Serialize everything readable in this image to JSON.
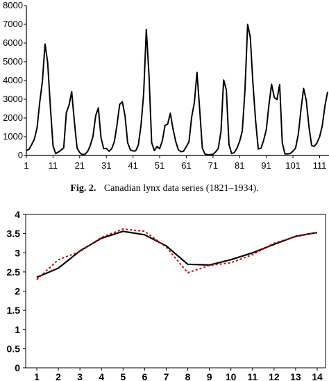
{
  "chart_data": [
    {
      "type": "line",
      "caption_label": "Fig. 2.",
      "caption_text": "Canadian lynx data series (1821–1934).",
      "xlim": [
        1,
        114
      ],
      "ylim": [
        0,
        8000
      ],
      "xticks": [
        1,
        11,
        21,
        31,
        41,
        51,
        61,
        71,
        81,
        91,
        101,
        111
      ],
      "yticks": [
        0,
        1000,
        2000,
        3000,
        4000,
        5000,
        6000,
        7000,
        8000
      ],
      "grid": false,
      "series": [
        {
          "color": "#000000",
          "values": [
            269,
            321,
            585,
            871,
            1475,
            2821,
            3928,
            5943,
            4950,
            2577,
            523,
            98,
            184,
            279,
            409,
            2285,
            2685,
            3409,
            1824,
            409,
            151,
            45,
            68,
            213,
            546,
            1033,
            2129,
            2536,
            957,
            361,
            377,
            225,
            360,
            731,
            1638,
            2725,
            2871,
            2119,
            684,
            299,
            236,
            245,
            552,
            1623,
            3311,
            6721,
            4254,
            687,
            255,
            473,
            358,
            784,
            1594,
            1676,
            2251,
            1426,
            756,
            299,
            201,
            229,
            469,
            736,
            2042,
            2811,
            4431,
            2511,
            389,
            73,
            39,
            49,
            59,
            188,
            377,
            1292,
            4031,
            3495,
            587,
            105,
            153,
            387,
            758,
            1307,
            3465,
            6991,
            6313,
            3794,
            1836,
            345,
            382,
            808,
            1388,
            2713,
            3800,
            3091,
            2985,
            3790,
            674,
            81,
            80,
            108,
            229,
            399,
            1132,
            2432,
            3574,
            2935,
            1537,
            529,
            485,
            662,
            1000,
            1590,
            2657,
            3396
          ]
        }
      ]
    },
    {
      "type": "line",
      "categories": [
        "1",
        "2",
        "3",
        "4",
        "5",
        "6",
        "7",
        "8",
        "9",
        "10",
        "11",
        "12",
        "13",
        "14"
      ],
      "ylim": [
        0,
        4
      ],
      "yticks": [
        "0",
        "0.5",
        "1",
        "1.5",
        "2",
        "2.5",
        "3",
        "3.5",
        "4"
      ],
      "grid": false,
      "series": [
        {
          "color": "#000000",
          "style": "solid",
          "values": [
            2.36,
            2.6,
            3.05,
            3.38,
            3.56,
            3.47,
            3.18,
            2.7,
            2.68,
            2.82,
            3.0,
            3.22,
            3.43,
            3.53
          ]
        },
        {
          "color": "#cc0000",
          "style": "dotted",
          "values": [
            2.3,
            2.82,
            3.03,
            3.4,
            3.62,
            3.56,
            3.15,
            2.48,
            2.67,
            2.74,
            2.95,
            3.25,
            3.42,
            3.53
          ]
        }
      ]
    }
  ]
}
